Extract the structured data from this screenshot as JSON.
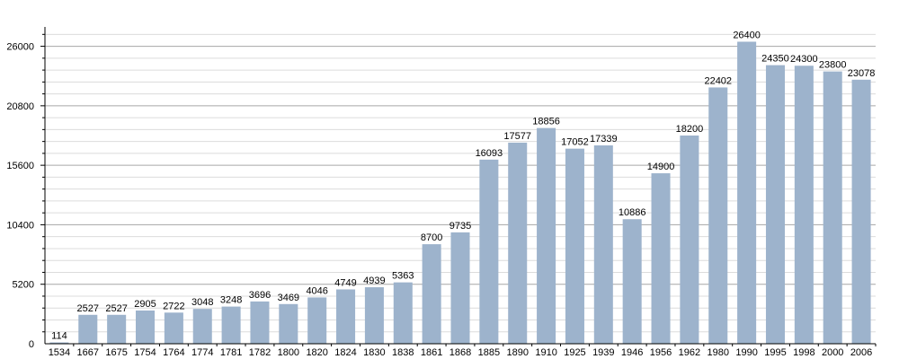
{
  "chart_data": {
    "type": "bar",
    "title": "",
    "xlabel": "",
    "ylabel": "",
    "categories": [
      "1534",
      "1667",
      "1675",
      "1754",
      "1764",
      "1774",
      "1781",
      "1782",
      "1800",
      "1820",
      "1824",
      "1830",
      "1838",
      "1861",
      "1868",
      "1885",
      "1890",
      "1910",
      "1925",
      "1939",
      "1946",
      "1956",
      "1962",
      "1980",
      "1990",
      "1995",
      "1998",
      "2000",
      "2006"
    ],
    "values": [
      114,
      2527,
      2527,
      2905,
      2722,
      3048,
      3248,
      3696,
      3469,
      4046,
      4749,
      4939,
      5363,
      8700,
      9735,
      16093,
      17577,
      18856,
      17052,
      17339,
      10886,
      14900,
      18200,
      22402,
      26400,
      24350,
      24300,
      23800,
      23078
    ],
    "value_labels": [
      "114",
      "2527",
      "2527",
      "2905",
      "2722",
      "3048",
      "3248",
      "3696",
      "3469",
      "4046",
      "4749",
      "4939",
      "5363",
      "8700",
      "9735",
      "16093",
      "17577",
      "18856",
      "17052",
      "17339",
      "10886",
      "14900",
      "18200",
      "22402",
      "26400",
      "24350",
      "24300",
      "23800",
      "23078"
    ],
    "yticks": [
      0,
      5200,
      10400,
      15600,
      20800,
      26000
    ],
    "ytick_labels": [
      "0",
      "5200",
      "10400",
      "15600",
      "20800",
      "26000"
    ],
    "ylim": [
      0,
      27300
    ],
    "grid": true,
    "colors": {
      "bar": "#9db3cc",
      "major_grid": "#a6a6a6",
      "minor_grid": "#dcdcdc",
      "axis": "#000000"
    }
  }
}
